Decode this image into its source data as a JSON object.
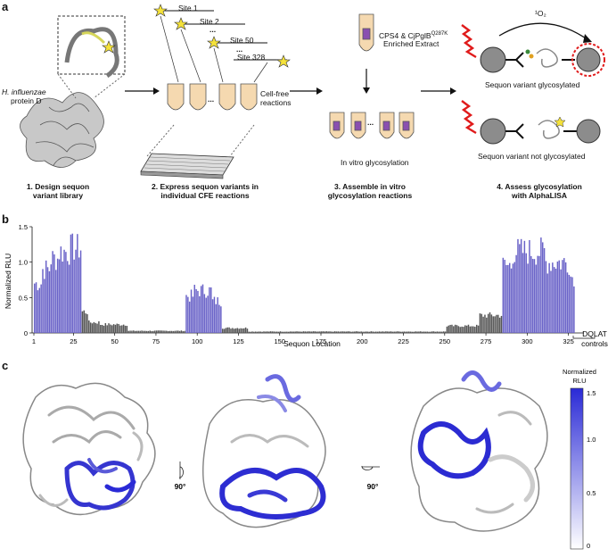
{
  "panel_labels": {
    "a": "a",
    "b": "b",
    "c": "c"
  },
  "panel_a": {
    "protein_name": "H. influenzae",
    "protein_suffix": "protein D",
    "sites": [
      "Site 1",
      "Site 2",
      "Site 50",
      "Site 328"
    ],
    "ellipsis": "...",
    "cell_free": "Cell-free reactions",
    "extract_line1": "CPS4 & CjPglB",
    "extract_sup": "Q287K",
    "extract_line2": "Enriched Extract",
    "in_vitro": "In vitro glycosylation",
    "singlet_oxygen": "¹O₂",
    "glycosylated": "Sequon variant glycosylated",
    "not_glycosylated": "Sequon variant not glycosylated",
    "steps": [
      {
        "line1": "1. Design sequon",
        "line2": "variant library"
      },
      {
        "line1": "2. Express sequon variants in",
        "line2": "individual CFE reactions"
      },
      {
        "line1": "3. Assemble in vitro",
        "line2": "glycosylation reactions"
      },
      {
        "line1": "4. Assess glycosylation",
        "line2": "with AlphaLISA"
      }
    ]
  },
  "chart_data": {
    "type": "bar",
    "title": "",
    "xlabel": "Sequon Location",
    "ylabel": "Normalized RLU",
    "ylim": [
      0,
      1.5
    ],
    "yticks": [
      0,
      0.5,
      1.0,
      1.5
    ],
    "ytick_labels": [
      "0",
      "0.5",
      "1.0",
      "1.5"
    ],
    "xticks": [
      1,
      25,
      50,
      75,
      100,
      125,
      150,
      175,
      200,
      225,
      250,
      275,
      300,
      325
    ],
    "control_label_1": "DQLAT",
    "control_label_2": "controls",
    "bar_color": "#6a63c8",
    "profile": [
      {
        "start": 1,
        "end": 5,
        "value": 0.7
      },
      {
        "start": 6,
        "end": 10,
        "value": 0.9
      },
      {
        "start": 11,
        "end": 15,
        "value": 1.05
      },
      {
        "start": 16,
        "end": 22,
        "value": 1.15
      },
      {
        "start": 23,
        "end": 29,
        "value": 1.2
      },
      {
        "start": 30,
        "end": 33,
        "value": 0.3
      },
      {
        "start": 34,
        "end": 40,
        "value": 0.15
      },
      {
        "start": 41,
        "end": 57,
        "value": 0.12
      },
      {
        "start": 58,
        "end": 92,
        "value": 0.03
      },
      {
        "start": 93,
        "end": 97,
        "value": 0.52
      },
      {
        "start": 98,
        "end": 108,
        "value": 0.6
      },
      {
        "start": 109,
        "end": 114,
        "value": 0.45
      },
      {
        "start": 115,
        "end": 130,
        "value": 0.07
      },
      {
        "start": 131,
        "end": 250,
        "value": 0.02
      },
      {
        "start": 251,
        "end": 270,
        "value": 0.1
      },
      {
        "start": 271,
        "end": 284,
        "value": 0.25
      },
      {
        "start": 285,
        "end": 290,
        "value": 0.95
      },
      {
        "start": 291,
        "end": 310,
        "value": 1.15
      },
      {
        "start": 311,
        "end": 325,
        "value": 1.0
      },
      {
        "start": 326,
        "end": 328,
        "value": 0.8
      }
    ]
  },
  "panel_c": {
    "rotation_1": "90°",
    "rotation_2": "90°",
    "colorbar_title_1": "Normalized",
    "colorbar_title_2": "RLU",
    "colorbar_ticks": [
      "1.5",
      "1.0",
      "0.5",
      "0"
    ],
    "colors": {
      "low": "#ffffff",
      "high": "#2a2ad6"
    }
  }
}
